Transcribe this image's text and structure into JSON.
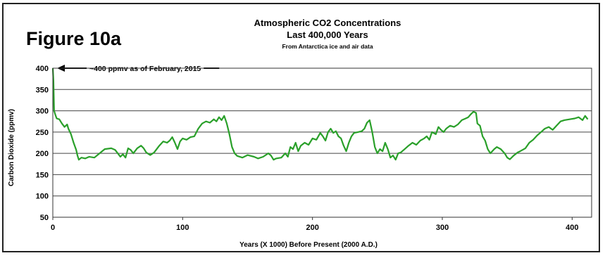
{
  "figure_label": "Figure 10a",
  "chart_data": {
    "type": "line",
    "title": "Atmospheric CO2 Concentrations",
    "subtitle": "Last 400,000 Years",
    "subtitle2": "From Antarctica ice and air data",
    "xlabel": "Years (X 1000) Before Present (2000 A.D.)",
    "ylabel": "Carbon Dioxide (ppmv)",
    "xlim": [
      0,
      415
    ],
    "ylim": [
      50,
      400
    ],
    "xticks": [
      0,
      100,
      200,
      300,
      400
    ],
    "yticks": [
      50,
      100,
      150,
      200,
      250,
      300,
      350,
      400
    ],
    "grid": "horizontal",
    "line_color": "#2aa02a",
    "annotation": {
      "text": "~400 ppmv as of February, 2015",
      "x": 0,
      "y": 400
    },
    "series": [
      {
        "values": [
          [
            0,
            400
          ],
          [
            0.5,
            370
          ],
          [
            1,
            300
          ],
          [
            2,
            290
          ],
          [
            3,
            282
          ],
          [
            5,
            280
          ],
          [
            7,
            270
          ],
          [
            9,
            262
          ],
          [
            11,
            268
          ],
          [
            12,
            258
          ],
          [
            14,
            245
          ],
          [
            16,
            225
          ],
          [
            18,
            208
          ],
          [
            19,
            195
          ],
          [
            20,
            185
          ],
          [
            22,
            190
          ],
          [
            25,
            188
          ],
          [
            28,
            192
          ],
          [
            32,
            190
          ],
          [
            36,
            200
          ],
          [
            40,
            210
          ],
          [
            45,
            212
          ],
          [
            48,
            208
          ],
          [
            50,
            200
          ],
          [
            52,
            192
          ],
          [
            54,
            198
          ],
          [
            56,
            190
          ],
          [
            58,
            212
          ],
          [
            60,
            208
          ],
          [
            62,
            200
          ],
          [
            65,
            212
          ],
          [
            68,
            218
          ],
          [
            70,
            212
          ],
          [
            72,
            202
          ],
          [
            75,
            196
          ],
          [
            78,
            202
          ],
          [
            82,
            218
          ],
          [
            85,
            228
          ],
          [
            88,
            225
          ],
          [
            90,
            230
          ],
          [
            92,
            238
          ],
          [
            94,
            225
          ],
          [
            96,
            210
          ],
          [
            98,
            228
          ],
          [
            100,
            235
          ],
          [
            103,
            232
          ],
          [
            106,
            238
          ],
          [
            109,
            240
          ],
          [
            112,
            258
          ],
          [
            115,
            270
          ],
          [
            118,
            275
          ],
          [
            121,
            272
          ],
          [
            124,
            280
          ],
          [
            126,
            275
          ],
          [
            128,
            285
          ],
          [
            130,
            278
          ],
          [
            132,
            288
          ],
          [
            134,
            270
          ],
          [
            136,
            245
          ],
          [
            138,
            215
          ],
          [
            140,
            200
          ],
          [
            142,
            194
          ],
          [
            146,
            190
          ],
          [
            150,
            196
          ],
          [
            155,
            192
          ],
          [
            158,
            188
          ],
          [
            162,
            192
          ],
          [
            166,
            200
          ],
          [
            168,
            195
          ],
          [
            170,
            185
          ],
          [
            172,
            188
          ],
          [
            176,
            190
          ],
          [
            179,
            200
          ],
          [
            181,
            192
          ],
          [
            183,
            215
          ],
          [
            185,
            210
          ],
          [
            187,
            225
          ],
          [
            189,
            205
          ],
          [
            191,
            218
          ],
          [
            194,
            225
          ],
          [
            197,
            220
          ],
          [
            200,
            235
          ],
          [
            203,
            232
          ],
          [
            206,
            248
          ],
          [
            208,
            240
          ],
          [
            210,
            230
          ],
          [
            212,
            250
          ],
          [
            214,
            258
          ],
          [
            216,
            248
          ],
          [
            218,
            252
          ],
          [
            220,
            240
          ],
          [
            222,
            235
          ],
          [
            224,
            218
          ],
          [
            226,
            205
          ],
          [
            228,
            225
          ],
          [
            230,
            240
          ],
          [
            232,
            248
          ],
          [
            235,
            250
          ],
          [
            238,
            252
          ],
          [
            240,
            258
          ],
          [
            242,
            272
          ],
          [
            244,
            278
          ],
          [
            246,
            250
          ],
          [
            248,
            215
          ],
          [
            250,
            200
          ],
          [
            252,
            210
          ],
          [
            254,
            205
          ],
          [
            256,
            225
          ],
          [
            258,
            210
          ],
          [
            260,
            190
          ],
          [
            262,
            195
          ],
          [
            264,
            185
          ],
          [
            266,
            200
          ],
          [
            268,
            202
          ],
          [
            271,
            210
          ],
          [
            274,
            218
          ],
          [
            277,
            225
          ],
          [
            280,
            220
          ],
          [
            283,
            230
          ],
          [
            286,
            235
          ],
          [
            288,
            240
          ],
          [
            290,
            232
          ],
          [
            292,
            250
          ],
          [
            295,
            245
          ],
          [
            297,
            262
          ],
          [
            299,
            255
          ],
          [
            301,
            250
          ],
          [
            303,
            258
          ],
          [
            306,
            265
          ],
          [
            309,
            262
          ],
          [
            312,
            268
          ],
          [
            315,
            278
          ],
          [
            318,
            282
          ],
          [
            320,
            285
          ],
          [
            322,
            292
          ],
          [
            324,
            298
          ],
          [
            326,
            295
          ],
          [
            327,
            270
          ],
          [
            329,
            265
          ],
          [
            331,
            240
          ],
          [
            333,
            230
          ],
          [
            335,
            210
          ],
          [
            337,
            200
          ],
          [
            340,
            210
          ],
          [
            342,
            215
          ],
          [
            345,
            210
          ],
          [
            348,
            200
          ],
          [
            350,
            190
          ],
          [
            352,
            186
          ],
          [
            355,
            195
          ],
          [
            358,
            202
          ],
          [
            360,
            205
          ],
          [
            364,
            212
          ],
          [
            367,
            225
          ],
          [
            370,
            232
          ],
          [
            373,
            242
          ],
          [
            376,
            250
          ],
          [
            379,
            258
          ],
          [
            382,
            262
          ],
          [
            385,
            255
          ],
          [
            388,
            265
          ],
          [
            391,
            275
          ],
          [
            394,
            278
          ],
          [
            398,
            280
          ],
          [
            402,
            282
          ],
          [
            405,
            285
          ],
          [
            408,
            278
          ],
          [
            410,
            288
          ],
          [
            412,
            280
          ]
        ]
      }
    ]
  }
}
